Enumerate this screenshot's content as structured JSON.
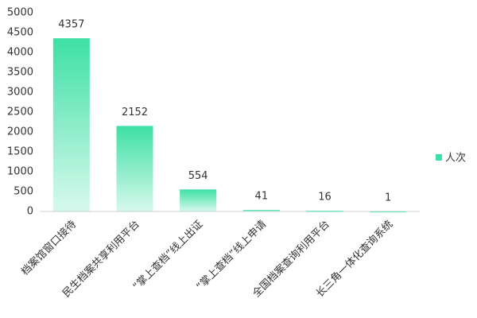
{
  "chart_data": {
    "type": "bar",
    "categories": [
      "档案馆窗口接待",
      "民生档案共享利用平台",
      "“掌上查档”线上出证",
      "“掌上查档”线上申请",
      "全国档案查询利用平台",
      "长三角一体化查询系统"
    ],
    "series": [
      {
        "name": "人次",
        "color": "#3de0a6",
        "values": [
          4357,
          2152,
          554,
          41,
          16,
          1
        ]
      }
    ],
    "ylim": [
      0,
      5000
    ],
    "yticks": [
      0,
      500,
      1000,
      1500,
      2000,
      2500,
      3000,
      3500,
      4000,
      4500,
      5000
    ],
    "grid": false,
    "legend": "right"
  }
}
